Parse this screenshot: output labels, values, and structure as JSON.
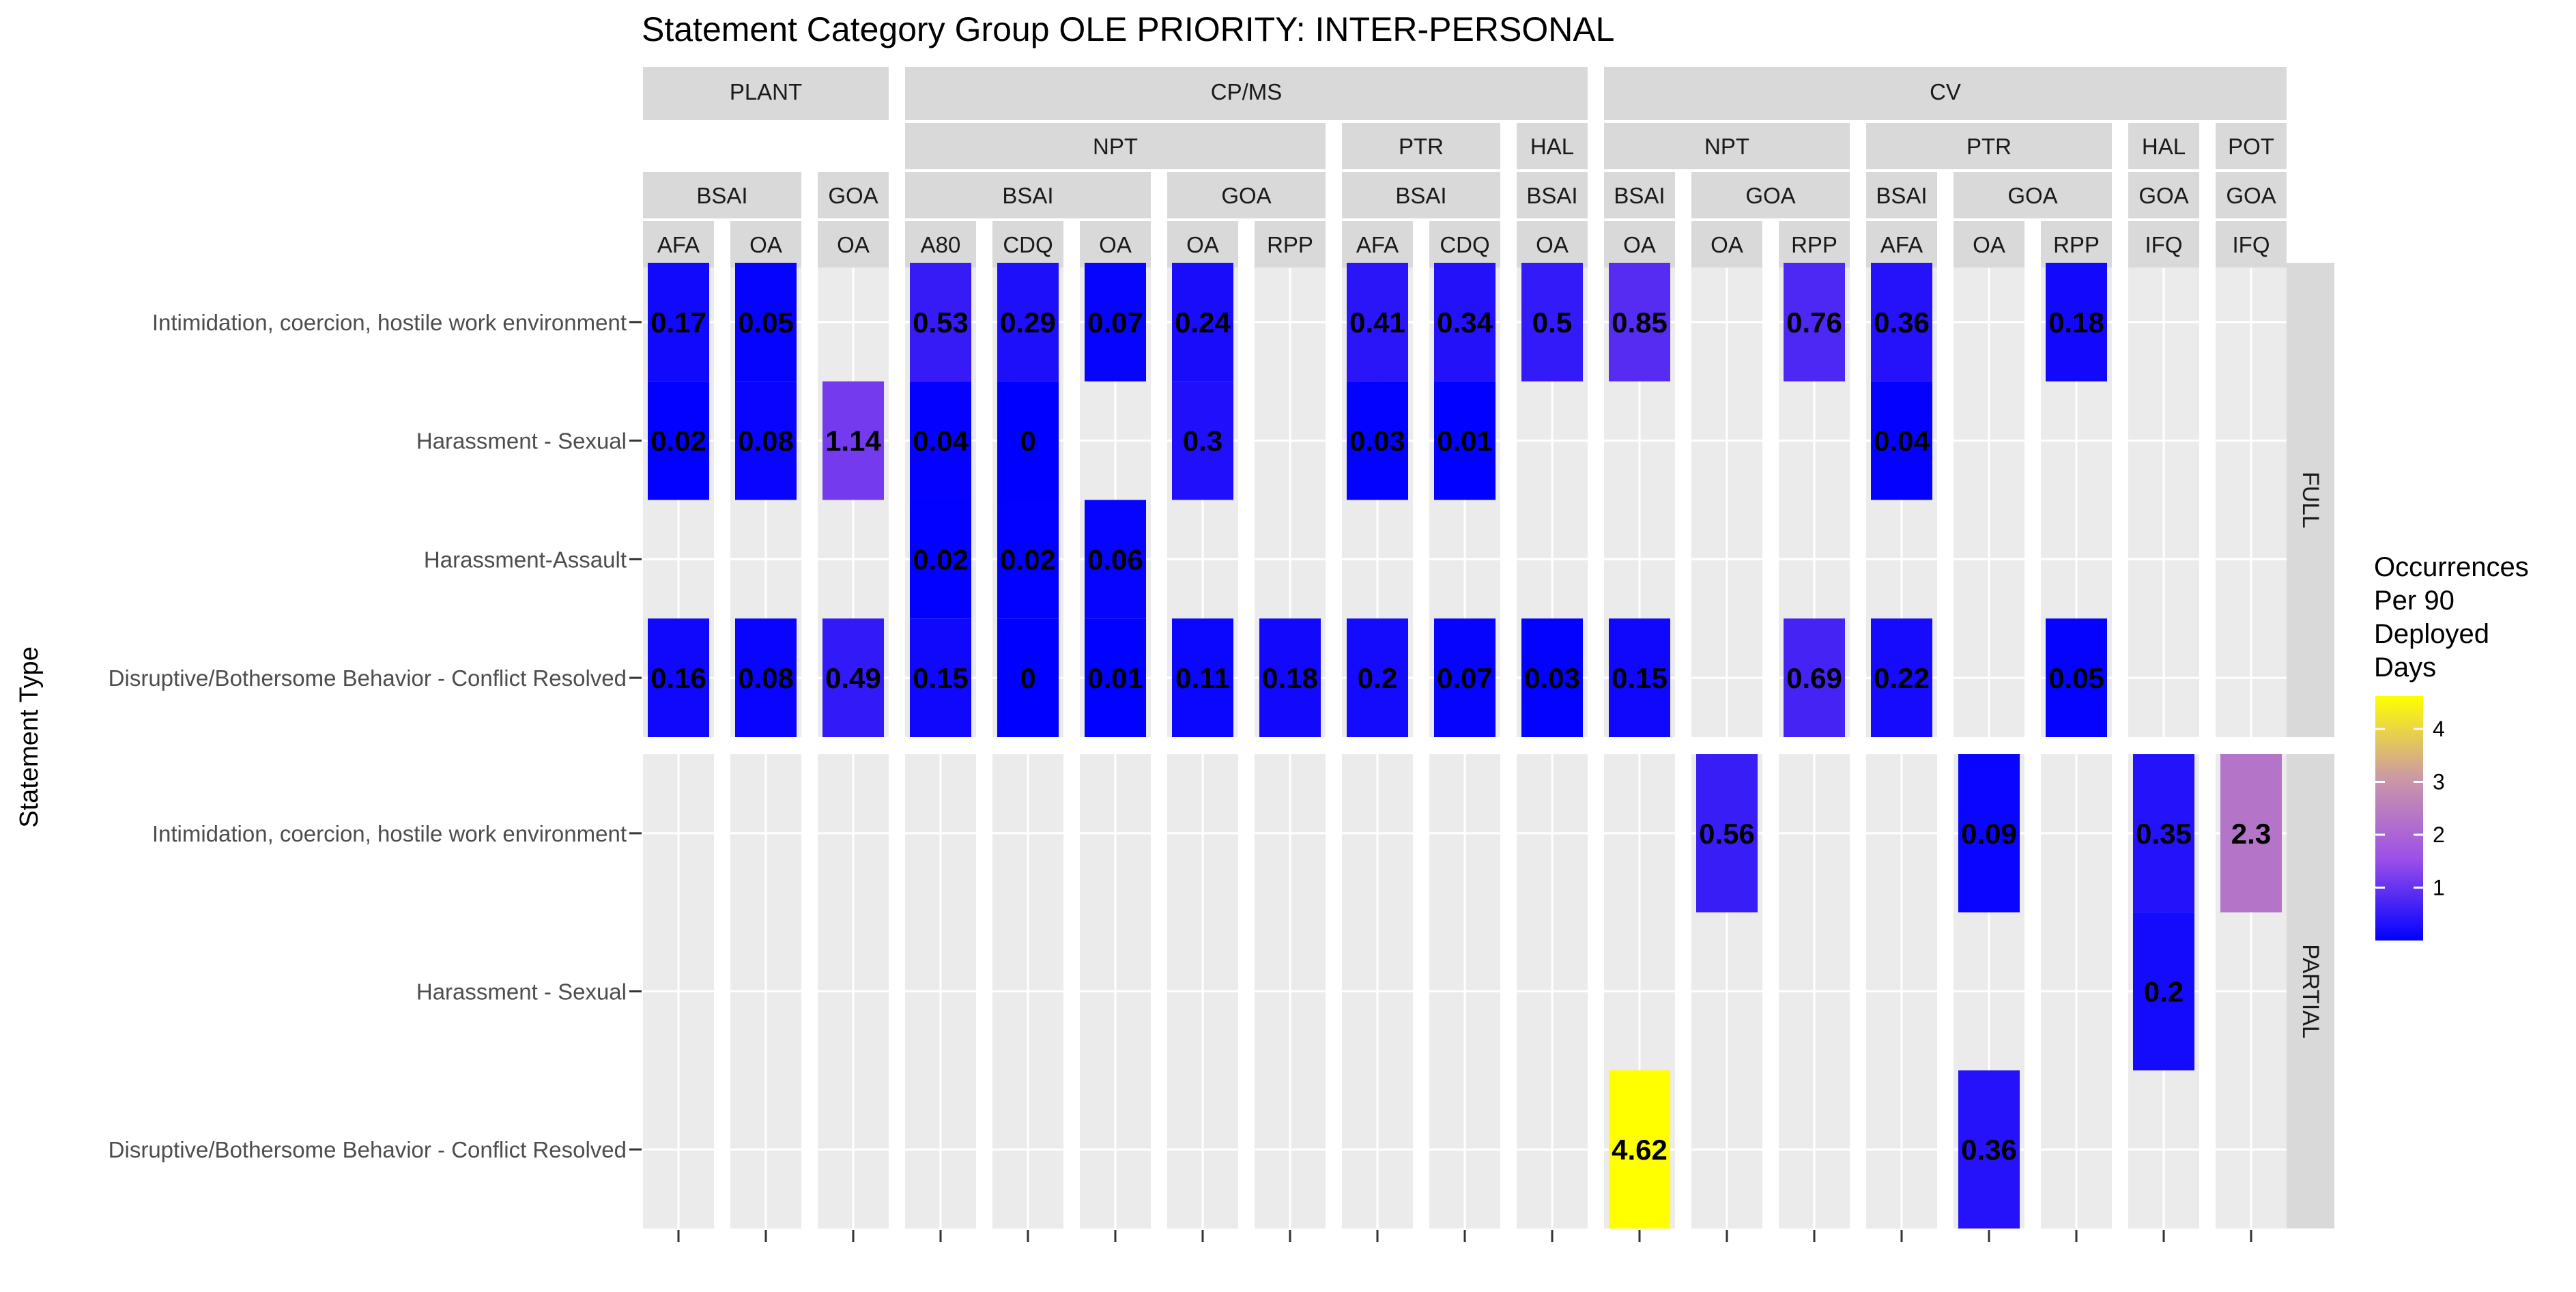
{
  "chart_data": {
    "type": "heatmap",
    "title": "Statement Category Group OLE PRIORITY: INTER-PERSONAL",
    "ylabel": "Statement Type",
    "xlabel": "",
    "legend": {
      "title_lines": [
        "Occurrences",
        "Per 90",
        "Deployed",
        "Days"
      ],
      "placement": "right",
      "ticks": [
        1,
        2,
        3,
        4
      ],
      "range": [
        0,
        4.62
      ],
      "colors": [
        "#0000ff",
        "#9d4fe8",
        "#cc99a6",
        "#ffff00"
      ]
    },
    "header_rows": {
      "sector": [
        {
          "label": "PLANT",
          "from": 0,
          "to": 2
        },
        {
          "label": "CP/MS",
          "from": 3,
          "to": 10
        },
        {
          "label": "CV",
          "from": 11,
          "to": 18
        }
      ],
      "gear": [
        {
          "label": "NPT",
          "from": 3,
          "to": 7
        },
        {
          "label": "PTR",
          "from": 8,
          "to": 9
        },
        {
          "label": "HAL",
          "from": 10,
          "to": 10
        },
        {
          "label": "NPT",
          "from": 11,
          "to": 13
        },
        {
          "label": "PTR",
          "from": 14,
          "to": 16
        },
        {
          "label": "HAL",
          "from": 17,
          "to": 17
        },
        {
          "label": "POT",
          "from": 18,
          "to": 18
        }
      ],
      "region": [
        {
          "label": "BSAI",
          "from": 0,
          "to": 1
        },
        {
          "label": "GOA",
          "from": 2,
          "to": 2
        },
        {
          "label": "BSAI",
          "from": 3,
          "to": 5
        },
        {
          "label": "GOA",
          "from": 6,
          "to": 7
        },
        {
          "label": "BSAI",
          "from": 8,
          "to": 9
        },
        {
          "label": "BSAI",
          "from": 10,
          "to": 10
        },
        {
          "label": "BSAI",
          "from": 11,
          "to": 11
        },
        {
          "label": "GOA",
          "from": 12,
          "to": 13
        },
        {
          "label": "BSAI",
          "from": 14,
          "to": 14
        },
        {
          "label": "GOA",
          "from": 15,
          "to": 16
        },
        {
          "label": "GOA",
          "from": 17,
          "to": 17
        },
        {
          "label": "GOA",
          "from": 18,
          "to": 18
        }
      ],
      "program": [
        "AFA",
        "OA",
        "OA",
        "A80",
        "CDQ",
        "OA",
        "OA",
        "RPP",
        "AFA",
        "CDQ",
        "OA",
        "OA",
        "OA",
        "RPP",
        "AFA",
        "OA",
        "RPP",
        "IFQ",
        "IFQ"
      ]
    },
    "row_panels": [
      {
        "label": "FULL",
        "rows": [
          "Intimidation, coercion, hostile work environment",
          "Harassment - Sexual",
          "Harassment-Assault",
          "Disruptive/Bothersome Behavior - Conflict Resolved"
        ],
        "cells": [
          {
            "col": 0,
            "row": 0,
            "value": 0.17
          },
          {
            "col": 1,
            "row": 0,
            "value": 0.05
          },
          {
            "col": 3,
            "row": 0,
            "value": 0.53
          },
          {
            "col": 4,
            "row": 0,
            "value": 0.29
          },
          {
            "col": 5,
            "row": 0,
            "value": 0.07
          },
          {
            "col": 6,
            "row": 0,
            "value": 0.24
          },
          {
            "col": 8,
            "row": 0,
            "value": 0.41
          },
          {
            "col": 9,
            "row": 0,
            "value": 0.34
          },
          {
            "col": 10,
            "row": 0,
            "value": 0.5
          },
          {
            "col": 11,
            "row": 0,
            "value": 0.85
          },
          {
            "col": 13,
            "row": 0,
            "value": 0.76
          },
          {
            "col": 14,
            "row": 0,
            "value": 0.36
          },
          {
            "col": 16,
            "row": 0,
            "value": 0.18
          },
          {
            "col": 0,
            "row": 1,
            "value": 0.02
          },
          {
            "col": 1,
            "row": 1,
            "value": 0.08
          },
          {
            "col": 2,
            "row": 1,
            "value": 1.14
          },
          {
            "col": 3,
            "row": 1,
            "value": 0.04
          },
          {
            "col": 4,
            "row": 1,
            "value": 0
          },
          {
            "col": 6,
            "row": 1,
            "value": 0.3
          },
          {
            "col": 8,
            "row": 1,
            "value": 0.03
          },
          {
            "col": 9,
            "row": 1,
            "value": 0.01
          },
          {
            "col": 14,
            "row": 1,
            "value": 0.04
          },
          {
            "col": 3,
            "row": 2,
            "value": 0.02
          },
          {
            "col": 4,
            "row": 2,
            "value": 0.02
          },
          {
            "col": 5,
            "row": 2,
            "value": 0.06
          },
          {
            "col": 0,
            "row": 3,
            "value": 0.16
          },
          {
            "col": 1,
            "row": 3,
            "value": 0.08
          },
          {
            "col": 2,
            "row": 3,
            "value": 0.49
          },
          {
            "col": 3,
            "row": 3,
            "value": 0.15
          },
          {
            "col": 4,
            "row": 3,
            "value": 0
          },
          {
            "col": 5,
            "row": 3,
            "value": 0.01
          },
          {
            "col": 6,
            "row": 3,
            "value": 0.11
          },
          {
            "col": 7,
            "row": 3,
            "value": 0.18
          },
          {
            "col": 8,
            "row": 3,
            "value": 0.2
          },
          {
            "col": 9,
            "row": 3,
            "value": 0.07
          },
          {
            "col": 10,
            "row": 3,
            "value": 0.03
          },
          {
            "col": 11,
            "row": 3,
            "value": 0.15
          },
          {
            "col": 13,
            "row": 3,
            "value": 0.69
          },
          {
            "col": 14,
            "row": 3,
            "value": 0.22
          },
          {
            "col": 16,
            "row": 3,
            "value": 0.05
          }
        ]
      },
      {
        "label": "PARTIAL",
        "rows": [
          "Intimidation, coercion, hostile work environment",
          "Harassment - Sexual",
          "Disruptive/Bothersome Behavior - Conflict Resolved"
        ],
        "cells": [
          {
            "col": 12,
            "row": 0,
            "value": 0.56
          },
          {
            "col": 15,
            "row": 0,
            "value": 0.09
          },
          {
            "col": 17,
            "row": 0,
            "value": 0.35
          },
          {
            "col": 18,
            "row": 0,
            "value": 2.3
          },
          {
            "col": 17,
            "row": 1,
            "value": 0.2
          },
          {
            "col": 11,
            "row": 2,
            "value": 4.62
          },
          {
            "col": 15,
            "row": 2,
            "value": 0.36
          }
        ]
      }
    ]
  }
}
